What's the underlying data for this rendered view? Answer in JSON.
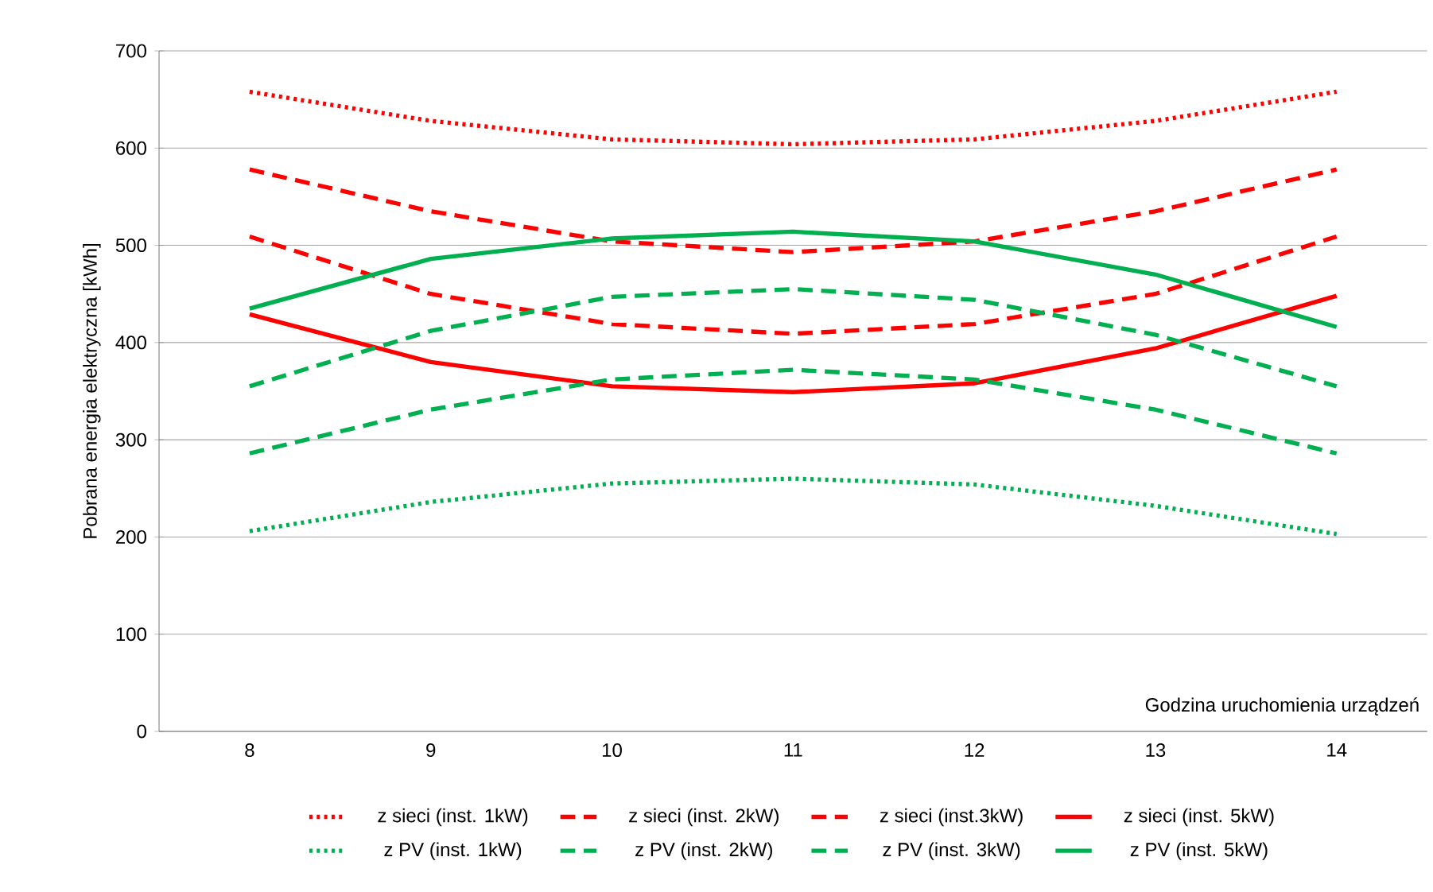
{
  "chart_data": {
    "type": "line",
    "xlabel": "Godzina uruchomienia urządzeń",
    "ylabel": "Pobrana energia elektryczna [kWh]",
    "categories": [
      "8",
      "9",
      "10",
      "11",
      "12",
      "13",
      "14"
    ],
    "ylim": [
      0,
      700
    ],
    "yticks": [
      0,
      100,
      200,
      300,
      400,
      500,
      600,
      700
    ],
    "grid": "y",
    "legend": "bottom",
    "marker": "none",
    "series": [
      {
        "name": "z sieci (inst. 1kW)",
        "color": "#ff0000",
        "line_style": "dotted",
        "values": [
          658,
          628,
          609,
          604,
          609,
          628,
          658
        ]
      },
      {
        "name": "z sieci (inst. 2kW)",
        "color": "#ff0000",
        "line_style": "dashed",
        "values": [
          578,
          535,
          504,
          493,
          504,
          535,
          578
        ]
      },
      {
        "name": "z sieci (inst.3kW)",
        "color": "#ff0000",
        "line_style": "dashed",
        "values": [
          509,
          450,
          419,
          409,
          419,
          450,
          509
        ]
      },
      {
        "name": "z sieci (inst. 5kW)",
        "color": "#ff0000",
        "line_style": "solid",
        "values": [
          429,
          380,
          355,
          349,
          358,
          394,
          448
        ]
      },
      {
        "name": "z PV (inst. 1kW)",
        "color": "#00b050",
        "line_style": "dotted",
        "values": [
          206,
          236,
          255,
          260,
          254,
          232,
          203
        ]
      },
      {
        "name": "z PV (inst. 2kW)",
        "color": "#00b050",
        "line_style": "dashed",
        "values": [
          286,
          331,
          362,
          372,
          362,
          331,
          286
        ]
      },
      {
        "name": "z PV (inst. 3kW)",
        "color": "#00b050",
        "line_style": "dashed",
        "values": [
          355,
          412,
          447,
          455,
          444,
          408,
          355
        ]
      },
      {
        "name": "z PV (inst. 5kW)",
        "color": "#00b050",
        "line_style": "solid",
        "values": [
          435,
          486,
          507,
          514,
          504,
          470,
          416
        ]
      }
    ]
  }
}
